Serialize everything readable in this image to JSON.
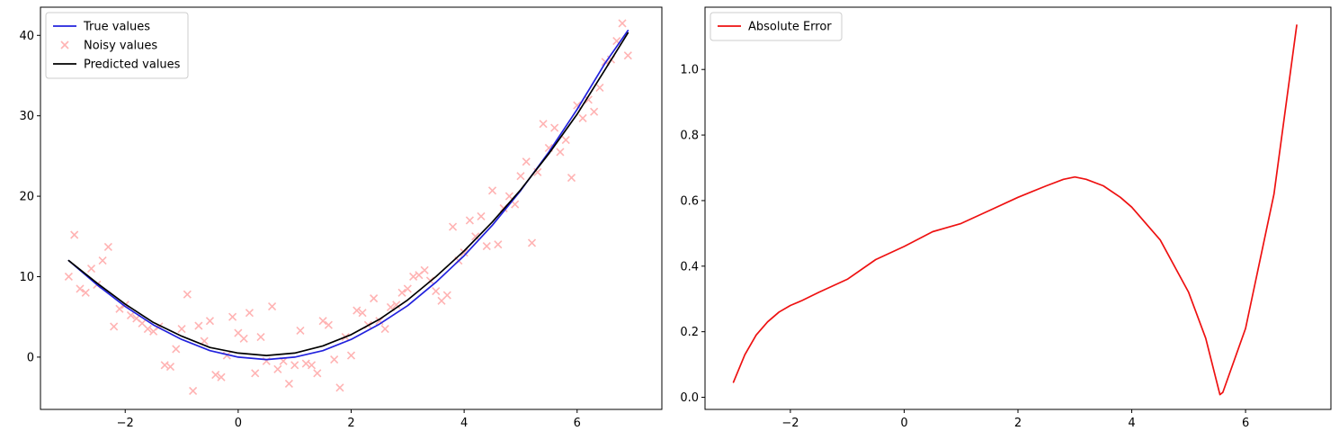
{
  "chart_data": [
    {
      "type": "line",
      "title": "",
      "xlabel": "",
      "ylabel": "",
      "xlim": [
        -3.5,
        7.5
      ],
      "ylim": [
        -6.5,
        43.5
      ],
      "xticks": [
        -2,
        0,
        2,
        4,
        6
      ],
      "xtick_labels": [
        "−2",
        "0",
        "2",
        "4",
        "6"
      ],
      "yticks": [
        0,
        10,
        20,
        30,
        40
      ],
      "ytick_labels": [
        "0",
        "10",
        "20",
        "30",
        "40"
      ],
      "grid": false,
      "legend_position": "upper left",
      "series": [
        {
          "name": "True values",
          "kind": "line",
          "color": "#2222dd",
          "x": [
            -3.0,
            -2.5,
            -2.0,
            -1.5,
            -1.0,
            -0.5,
            0.0,
            0.5,
            1.0,
            1.5,
            2.0,
            2.5,
            3.0,
            3.5,
            4.0,
            4.5,
            5.0,
            5.5,
            6.0,
            6.5,
            6.9
          ],
          "y": [
            12.0,
            9.0,
            6.3,
            4.0,
            2.2,
            0.8,
            0.0,
            -0.3,
            0.0,
            0.8,
            2.2,
            4.1,
            6.4,
            9.3,
            12.6,
            16.4,
            20.7,
            25.5,
            30.8,
            36.6,
            40.6
          ]
        },
        {
          "name": "Noisy values",
          "kind": "scatter",
          "color": "#ffb3b3",
          "x": [
            -3.0,
            -2.9,
            -2.8,
            -2.7,
            -2.6,
            -2.5,
            -2.4,
            -2.3,
            -2.2,
            -2.1,
            -2.0,
            -1.9,
            -1.8,
            -1.7,
            -1.6,
            -1.5,
            -1.4,
            -1.3,
            -1.2,
            -1.1,
            -1.0,
            -0.9,
            -0.8,
            -0.7,
            -0.6,
            -0.5,
            -0.4,
            -0.3,
            -0.2,
            -0.1,
            0.0,
            0.1,
            0.2,
            0.3,
            0.4,
            0.5,
            0.6,
            0.7,
            0.8,
            0.9,
            1.0,
            1.1,
            1.2,
            1.3,
            1.4,
            1.5,
            1.6,
            1.7,
            1.8,
            1.9,
            2.0,
            2.1,
            2.2,
            2.3,
            2.4,
            2.5,
            2.6,
            2.7,
            2.8,
            2.9,
            3.0,
            3.1,
            3.2,
            3.3,
            3.4,
            3.5,
            3.6,
            3.7,
            3.8,
            3.9,
            4.0,
            4.1,
            4.2,
            4.3,
            4.4,
            4.5,
            4.6,
            4.7,
            4.8,
            4.9,
            5.0,
            5.1,
            5.2,
            5.3,
            5.4,
            5.5,
            5.6,
            5.7,
            5.8,
            5.9,
            6.0,
            6.1,
            6.2,
            6.3,
            6.4,
            6.5,
            6.6,
            6.7,
            6.8,
            6.9
          ],
          "y": [
            10.0,
            15.2,
            8.5,
            8.0,
            11.0,
            9.0,
            12.0,
            13.7,
            3.8,
            6.0,
            6.5,
            5.2,
            4.8,
            4.2,
            3.5,
            3.2,
            3.8,
            -1.0,
            -1.2,
            1.0,
            3.5,
            7.8,
            -4.2,
            3.9,
            2.0,
            4.5,
            -2.2,
            -2.5,
            0.2,
            5.0,
            3.0,
            2.3,
            5.5,
            -2.0,
            2.5,
            -0.5,
            6.3,
            -1.5,
            -0.5,
            -3.3,
            -1.0,
            3.3,
            -0.8,
            -1.0,
            -2.0,
            4.5,
            4.0,
            -0.3,
            -3.8,
            2.5,
            0.2,
            5.8,
            5.5,
            4.0,
            7.3,
            4.5,
            3.5,
            6.2,
            6.5,
            8.0,
            8.5,
            10.0,
            10.2,
            10.8,
            9.5,
            8.2,
            7.0,
            7.7,
            16.2,
            12.0,
            13.0,
            17.0,
            15.0,
            17.5,
            13.8,
            20.7,
            14.0,
            18.5,
            20.0,
            19.0,
            22.5,
            24.3,
            14.2,
            23.0,
            29.0,
            26.0,
            28.5,
            25.5,
            27.0,
            22.3,
            31.3,
            29.7,
            32.0,
            30.5,
            33.5,
            36.7,
            37.0,
            39.3,
            41.5,
            37.5
          ]
        },
        {
          "name": "Predicted values",
          "kind": "line",
          "color": "#000000",
          "x": [
            -3.0,
            -2.5,
            -2.0,
            -1.5,
            -1.0,
            -0.5,
            0.0,
            0.5,
            1.0,
            1.5,
            2.0,
            2.5,
            3.0,
            3.5,
            4.0,
            4.5,
            5.0,
            5.5,
            6.0,
            6.5,
            6.9
          ],
          "y": [
            12.0,
            9.2,
            6.6,
            4.3,
            2.6,
            1.2,
            0.5,
            0.2,
            0.5,
            1.4,
            2.8,
            4.7,
            7.1,
            10.0,
            13.2,
            16.8,
            20.8,
            25.3,
            30.2,
            35.8,
            40.3
          ]
        }
      ]
    },
    {
      "type": "line",
      "title": "",
      "xlabel": "",
      "ylabel": "",
      "xlim": [
        -3.5,
        7.5
      ],
      "ylim": [
        -0.037,
        1.19
      ],
      "xticks": [
        -2,
        0,
        2,
        4,
        6
      ],
      "xtick_labels": [
        "−2",
        "0",
        "2",
        "4",
        "6"
      ],
      "yticks": [
        0.0,
        0.2,
        0.4,
        0.6,
        0.8,
        1.0
      ],
      "ytick_labels": [
        "0.0",
        "0.2",
        "0.4",
        "0.6",
        "0.8",
        "1.0"
      ],
      "grid": false,
      "legend_position": "upper left",
      "series": [
        {
          "name": "Absolute Error",
          "kind": "line",
          "color": "#ee1111",
          "x": [
            -3.0,
            -2.8,
            -2.6,
            -2.4,
            -2.2,
            -2.0,
            -1.8,
            -1.5,
            -1.0,
            -0.5,
            0.0,
            0.5,
            1.0,
            1.5,
            2.0,
            2.5,
            2.8,
            3.0,
            3.2,
            3.5,
            3.8,
            4.0,
            4.5,
            5.0,
            5.3,
            5.55,
            5.6,
            6.0,
            6.5,
            6.9
          ],
          "y": [
            0.046,
            0.13,
            0.19,
            0.23,
            0.26,
            0.28,
            0.295,
            0.32,
            0.36,
            0.42,
            0.46,
            0.505,
            0.53,
            0.57,
            0.61,
            0.645,
            0.665,
            0.672,
            0.665,
            0.645,
            0.61,
            0.58,
            0.48,
            0.32,
            0.18,
            0.008,
            0.015,
            0.21,
            0.62,
            1.135
          ]
        }
      ]
    }
  ]
}
